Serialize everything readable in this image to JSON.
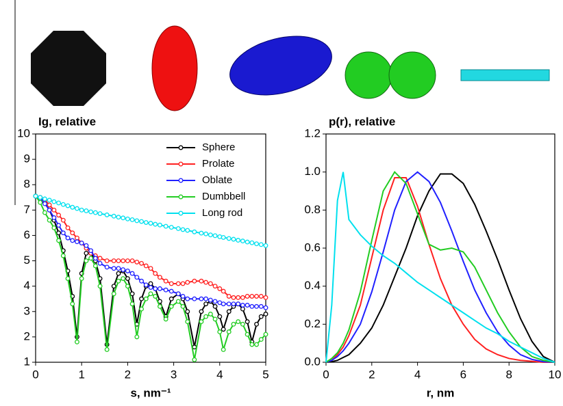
{
  "chart_data": [
    {
      "type": "line",
      "title": "Ig, relative",
      "xlabel": "s, nm⁻¹",
      "markers": true,
      "legend": "upper right",
      "x": [
        0,
        0.1,
        0.2,
        0.3,
        0.4,
        0.5,
        0.6,
        0.7,
        0.8,
        0.9,
        1.0,
        1.1,
        1.2,
        1.3,
        1.4,
        1.55,
        1.7,
        1.8,
        1.9,
        2.0,
        2.1,
        2.2,
        2.3,
        2.4,
        2.5,
        2.6,
        2.7,
        2.83,
        2.95,
        3.1,
        3.2,
        3.3,
        3.45,
        3.6,
        3.7,
        3.8,
        3.9,
        4.0,
        4.08,
        4.2,
        4.3,
        4.4,
        4.5,
        4.6,
        4.7,
        4.8,
        4.9,
        5.0
      ],
      "series": [
        {
          "name": "Sphere",
          "color": "#000000",
          "values": [
            7.55,
            7.5,
            7.3,
            7.0,
            6.6,
            6.1,
            5.4,
            4.6,
            3.6,
            2.0,
            4.5,
            5.3,
            5.3,
            5.0,
            4.3,
            1.7,
            4.0,
            4.5,
            4.6,
            4.3,
            3.7,
            2.5,
            3.5,
            4.0,
            4.1,
            3.9,
            3.4,
            2.8,
            3.5,
            3.7,
            3.5,
            3.0,
            1.6,
            3.0,
            3.3,
            3.4,
            3.2,
            2.8,
            2.3,
            3.0,
            3.2,
            3.3,
            3.1,
            2.6,
            1.8,
            2.5,
            2.8,
            2.9
          ]
        },
        {
          "name": "Prolate",
          "color": "#ff2020",
          "values": [
            7.55,
            7.5,
            7.4,
            7.2,
            7.0,
            6.8,
            6.6,
            6.3,
            6.1,
            5.9,
            5.7,
            5.5,
            5.3,
            5.2,
            5.1,
            5.0,
            5.0,
            5.0,
            5.0,
            5.0,
            5.0,
            4.95,
            4.9,
            4.8,
            4.7,
            4.5,
            4.35,
            4.2,
            4.1,
            4.1,
            4.1,
            4.15,
            4.2,
            4.2,
            4.15,
            4.1,
            4.0,
            3.9,
            3.8,
            3.6,
            3.55,
            3.55,
            3.55,
            3.6,
            3.6,
            3.6,
            3.6,
            3.55
          ]
        },
        {
          "name": "Oblate",
          "color": "#2020ff",
          "values": [
            7.55,
            7.45,
            7.25,
            7.0,
            6.7,
            6.4,
            6.1,
            5.9,
            5.8,
            5.75,
            5.7,
            5.6,
            5.4,
            5.1,
            4.9,
            4.75,
            4.7,
            4.7,
            4.65,
            4.6,
            4.5,
            4.35,
            4.2,
            4.05,
            3.95,
            3.9,
            3.9,
            3.85,
            3.8,
            3.7,
            3.6,
            3.5,
            3.5,
            3.5,
            3.5,
            3.45,
            3.4,
            3.35,
            3.3,
            3.3,
            3.3,
            3.3,
            3.25,
            3.25,
            3.2,
            3.2,
            3.2,
            3.15
          ]
        },
        {
          "name": "Dumbbell",
          "color": "#22cc22",
          "values": [
            7.55,
            7.3,
            6.9,
            6.6,
            6.3,
            5.8,
            5.2,
            4.3,
            3.3,
            1.8,
            4.3,
            5.0,
            5.1,
            4.8,
            4.0,
            1.5,
            3.7,
            4.2,
            4.3,
            4.0,
            3.3,
            2.0,
            3.1,
            3.5,
            3.7,
            3.6,
            3.2,
            2.7,
            3.2,
            3.4,
            3.2,
            2.6,
            1.1,
            2.6,
            2.8,
            2.9,
            2.7,
            2.2,
            1.5,
            2.2,
            2.5,
            2.6,
            2.5,
            2.1,
            1.7,
            1.7,
            1.9,
            2.1
          ]
        },
        {
          "name": "Long rod",
          "color": "#00e0ee",
          "values": [
            7.55,
            7.5,
            7.44,
            7.39,
            7.33,
            7.28,
            7.22,
            7.17,
            7.11,
            7.06,
            7.0,
            6.97,
            6.93,
            6.9,
            6.86,
            6.81,
            6.76,
            6.72,
            6.69,
            6.65,
            6.62,
            6.58,
            6.55,
            6.51,
            6.48,
            6.44,
            6.41,
            6.36,
            6.32,
            6.27,
            6.23,
            6.2,
            6.14,
            6.09,
            6.06,
            6.02,
            5.99,
            5.95,
            5.92,
            5.88,
            5.85,
            5.81,
            5.78,
            5.74,
            5.71,
            5.67,
            5.64,
            5.6
          ]
        }
      ],
      "xlim": [
        0,
        5
      ],
      "xticks": [
        0,
        1,
        2,
        3,
        4,
        5
      ],
      "ylim": [
        1,
        10
      ],
      "yticks": [
        1,
        2,
        3,
        4,
        5,
        6,
        7,
        8,
        9,
        10
      ]
    },
    {
      "type": "line",
      "title": "p(r), relative",
      "xlabel": "r, nm",
      "markers": false,
      "x": [
        0,
        0.25,
        0.5,
        0.75,
        1,
        1.5,
        2,
        2.5,
        3,
        3.5,
        4,
        4.5,
        5,
        5.5,
        6,
        6.5,
        7,
        7.5,
        8,
        8.5,
        9,
        9.5,
        10
      ],
      "series": [
        {
          "name": "Sphere",
          "color": "#000000",
          "values": [
            0,
            0.003,
            0.01,
            0.025,
            0.04,
            0.1,
            0.18,
            0.3,
            0.45,
            0.6,
            0.77,
            0.9,
            0.99,
            0.99,
            0.94,
            0.83,
            0.69,
            0.54,
            0.38,
            0.23,
            0.11,
            0.03,
            0
          ]
        },
        {
          "name": "Prolate",
          "color": "#ff2020",
          "values": [
            0,
            0.01,
            0.04,
            0.08,
            0.14,
            0.3,
            0.55,
            0.8,
            0.97,
            0.97,
            0.82,
            0.62,
            0.44,
            0.3,
            0.2,
            0.12,
            0.07,
            0.04,
            0.02,
            0.01,
            0.005,
            0,
            0
          ]
        },
        {
          "name": "Oblate",
          "color": "#2020ff",
          "values": [
            0,
            0.01,
            0.03,
            0.06,
            0.1,
            0.2,
            0.37,
            0.58,
            0.8,
            0.95,
            1.0,
            0.95,
            0.84,
            0.69,
            0.53,
            0.38,
            0.26,
            0.16,
            0.09,
            0.04,
            0.015,
            0.003,
            0
          ]
        },
        {
          "name": "Dumbbell",
          "color": "#22cc22",
          "values": [
            0,
            0.02,
            0.05,
            0.1,
            0.17,
            0.37,
            0.64,
            0.9,
            1.0,
            0.94,
            0.78,
            0.62,
            0.59,
            0.6,
            0.58,
            0.5,
            0.38,
            0.26,
            0.16,
            0.08,
            0.03,
            0.01,
            0
          ]
        },
        {
          "name": "Long rod",
          "color": "#00e0ee",
          "values": [
            0,
            0.3,
            0.85,
            1.0,
            0.75,
            0.67,
            0.61,
            0.56,
            0.52,
            0.47,
            0.42,
            0.38,
            0.34,
            0.3,
            0.26,
            0.22,
            0.18,
            0.15,
            0.11,
            0.08,
            0.05,
            0.02,
            0
          ]
        }
      ],
      "xlim": [
        0,
        10
      ],
      "xticks": [
        0,
        2,
        4,
        6,
        8,
        10
      ],
      "ylim": [
        0,
        1.2
      ],
      "yticks": [
        {
          "value": 0,
          "label": "0.0"
        },
        0.2,
        0.4,
        0.6,
        0.8,
        {
          "value": 1,
          "label": "1.0"
        },
        1.2
      ]
    }
  ]
}
